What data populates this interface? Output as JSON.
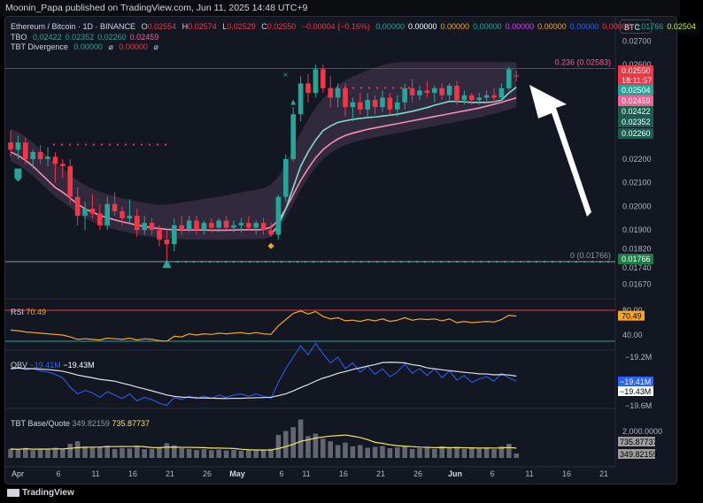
{
  "header": {
    "publisher_text": "Moonin_Papa published on TradingView.com, Jun 11, 2025 14:48 UTC+9"
  },
  "symbol": {
    "title": "Ethereum / Bitcoin · 1D · BINANCE",
    "ohlc": {
      "o_label": "O",
      "o": "0.02554",
      "h_label": "H",
      "h": "0.02574",
      "l_label": "L",
      "l": "0.02529",
      "c_label": "C",
      "c": "0.02550",
      "change": "−0.00004 (−0.16%)"
    },
    "extra_values": [
      "0.00000",
      "0.00000",
      "0.00000",
      "0.00000",
      "0.00000",
      "0.00000",
      "0.00000",
      "0.00000",
      "0.01766",
      "0.02504"
    ],
    "extra_colors": [
      "#26a69a",
      "#ffffff",
      "#f5a623",
      "#26a69a",
      "#e040fb",
      "#f5a623",
      "#2962ff",
      "#f23645",
      "#26a69a",
      "#c6ff00"
    ],
    "currency_badge": "BTC"
  },
  "tbo_legend": {
    "label": "TBO",
    "values": [
      "0.02422",
      "0.02352",
      "0.02260",
      "0.02459"
    ],
    "colors": [
      "#26a69a",
      "#26a69a",
      "#26a69a",
      "#f06292"
    ]
  },
  "divergence_legend": {
    "label": "TBT Divergence",
    "v1": "0.00000",
    "sym1": "⌀",
    "v2": "0.00000",
    "sym2": "⌀"
  },
  "fib_labels": {
    "top": "0.236 (0.02583)",
    "bottom": "0 (0.01766)"
  },
  "price_axis": {
    "ticks": [
      "0.02700",
      "0.02600",
      "0.02200",
      "0.02100",
      "0.02000",
      "0.01900",
      "0.01820",
      "0.01740",
      "0.01670"
    ],
    "badges": [
      {
        "label": "0.02550",
        "sub": "18:11:57",
        "color": "#f23645"
      },
      {
        "label": "0.02504",
        "color": "#26a69a"
      },
      {
        "label": "0.02459",
        "color": "#f06292"
      },
      {
        "label": "0.02422",
        "color": "#1b5e50"
      },
      {
        "label": "0.02352",
        "color": "#1b5e50"
      },
      {
        "label": "0.02260",
        "color": "#1b5e50"
      },
      {
        "label": "0.01766",
        "color": "#1b7f45"
      }
    ]
  },
  "rsi": {
    "label": "RSI",
    "value": "70.49",
    "ticks": [
      "80.00",
      "40.00"
    ],
    "badge": "70.49"
  },
  "obv": {
    "label": "OBV",
    "v1": "−19.41M",
    "v2": "−19.43M",
    "ticks": [
      "−19.2M",
      "−19.6M"
    ],
    "badge1": "−19.41M",
    "badge2": "−19.43M"
  },
  "volume": {
    "label": "TBT Base/Quote",
    "v1": "349.82159",
    "v2": "735.87737",
    "ticks": [
      "2,000.0000"
    ],
    "badge1": "735.87737",
    "badge2": "349.82159"
  },
  "time_axis": [
    "Apr",
    "6",
    "11",
    "16",
    "21",
    "26",
    "May",
    "6",
    "11",
    "16",
    "21",
    "26",
    "Jun",
    "6",
    "11",
    "16",
    "21"
  ],
  "branding": "TradingView",
  "chart_data": {
    "type": "candlestick",
    "title": "Ethereum / Bitcoin · 1D · BINANCE",
    "x_start": "2025-03-25",
    "x_end": "2025-06-11",
    "ohlc": [
      [
        0.0227,
        0.0232,
        0.0221,
        0.0224
      ],
      [
        0.0224,
        0.023,
        0.022,
        0.0227
      ],
      [
        0.0227,
        0.0229,
        0.0218,
        0.022
      ],
      [
        0.022,
        0.0224,
        0.0216,
        0.0223
      ],
      [
        0.0223,
        0.0226,
        0.0218,
        0.022
      ],
      [
        0.022,
        0.0225,
        0.0217,
        0.0221
      ],
      [
        0.0221,
        0.0223,
        0.021,
        0.0218
      ],
      [
        0.0218,
        0.022,
        0.0212,
        0.0217
      ],
      [
        0.0217,
        0.022,
        0.0201,
        0.0204
      ],
      [
        0.0204,
        0.0208,
        0.0192,
        0.0196
      ],
      [
        0.0196,
        0.0202,
        0.019,
        0.0199
      ],
      [
        0.0199,
        0.0205,
        0.0195,
        0.0197
      ],
      [
        0.0197,
        0.0201,
        0.019,
        0.0192
      ],
      [
        0.0192,
        0.0204,
        0.019,
        0.0201
      ],
      [
        0.0201,
        0.0206,
        0.0196,
        0.0198
      ],
      [
        0.0198,
        0.02,
        0.0192,
        0.0195
      ],
      [
        0.0195,
        0.0203,
        0.0193,
        0.0196
      ],
      [
        0.0196,
        0.0199,
        0.0187,
        0.019
      ],
      [
        0.019,
        0.0196,
        0.0188,
        0.0193
      ],
      [
        0.0193,
        0.0195,
        0.0188,
        0.019
      ],
      [
        0.019,
        0.0192,
        0.0183,
        0.0186
      ],
      [
        0.0186,
        0.019,
        0.0177,
        0.0184
      ],
      [
        0.0184,
        0.0195,
        0.0181,
        0.0192
      ],
      [
        0.0192,
        0.0196,
        0.0188,
        0.019
      ],
      [
        0.019,
        0.0196,
        0.0189,
        0.0194
      ],
      [
        0.0194,
        0.0196,
        0.0188,
        0.019
      ],
      [
        0.019,
        0.0194,
        0.0188,
        0.0193
      ],
      [
        0.0193,
        0.0195,
        0.0189,
        0.0191
      ],
      [
        0.0191,
        0.0195,
        0.0189,
        0.0194
      ],
      [
        0.0194,
        0.0196,
        0.019,
        0.0191
      ],
      [
        0.0191,
        0.0194,
        0.0189,
        0.0192
      ],
      [
        0.0192,
        0.0195,
        0.0189,
        0.0193
      ],
      [
        0.0193,
        0.0196,
        0.019,
        0.0191
      ],
      [
        0.0191,
        0.0194,
        0.0188,
        0.0193
      ],
      [
        0.0193,
        0.0195,
        0.0188,
        0.019
      ],
      [
        0.019,
        0.0193,
        0.0187,
        0.0188
      ],
      [
        0.0188,
        0.0205,
        0.0186,
        0.0204
      ],
      [
        0.0204,
        0.0222,
        0.0202,
        0.022
      ],
      [
        0.022,
        0.0242,
        0.0219,
        0.0239
      ],
      [
        0.0239,
        0.0255,
        0.0236,
        0.0252
      ],
      [
        0.0252,
        0.0256,
        0.0244,
        0.0248
      ],
      [
        0.0248,
        0.026,
        0.0246,
        0.0258
      ],
      [
        0.0258,
        0.026,
        0.0248,
        0.025
      ],
      [
        0.025,
        0.0255,
        0.0242,
        0.0246
      ],
      [
        0.0246,
        0.0252,
        0.0242,
        0.025
      ],
      [
        0.025,
        0.0252,
        0.0238,
        0.0242
      ],
      [
        0.0242,
        0.0246,
        0.0236,
        0.0244
      ],
      [
        0.0244,
        0.0248,
        0.0239,
        0.0241
      ],
      [
        0.0241,
        0.0248,
        0.0238,
        0.0245
      ],
      [
        0.0245,
        0.0247,
        0.0239,
        0.0242
      ],
      [
        0.0242,
        0.0249,
        0.024,
        0.0246
      ],
      [
        0.0246,
        0.0248,
        0.0239,
        0.0241
      ],
      [
        0.0241,
        0.0247,
        0.0238,
        0.0244
      ],
      [
        0.0244,
        0.0252,
        0.0241,
        0.025
      ],
      [
        0.025,
        0.0254,
        0.0244,
        0.0247
      ],
      [
        0.0247,
        0.0251,
        0.0245,
        0.0249
      ],
      [
        0.0249,
        0.0253,
        0.0246,
        0.0248
      ],
      [
        0.0248,
        0.0251,
        0.0244,
        0.025
      ],
      [
        0.025,
        0.0252,
        0.0245,
        0.0247
      ],
      [
        0.0247,
        0.0252,
        0.0245,
        0.0251
      ],
      [
        0.0251,
        0.0253,
        0.0243,
        0.0245
      ],
      [
        0.0245,
        0.0249,
        0.0243,
        0.0247
      ],
      [
        0.0247,
        0.0248,
        0.0243,
        0.0245
      ],
      [
        0.0245,
        0.0248,
        0.0243,
        0.0246
      ],
      [
        0.0246,
        0.0249,
        0.0244,
        0.0247
      ],
      [
        0.0247,
        0.025,
        0.0244,
        0.0246
      ],
      [
        0.0246,
        0.0252,
        0.0245,
        0.025
      ],
      [
        0.025,
        0.0259,
        0.0249,
        0.0258
      ],
      [
        0.02554,
        0.02574,
        0.02529,
        0.0255
      ]
    ],
    "ema_slow": [
      0.0223,
      0.02215,
      0.02195,
      0.0217,
      0.0214,
      0.0211,
      0.0208,
      0.0206,
      0.02035,
      0.0201,
      0.0199,
      0.01975,
      0.01962,
      0.01952,
      0.01943,
      0.01935,
      0.01928,
      0.01921,
      0.01915,
      0.0191,
      0.01906,
      0.01903,
      0.01901,
      0.019,
      0.019,
      0.019,
      0.019,
      0.01899,
      0.01899,
      0.01899,
      0.019,
      0.01901,
      0.01901,
      0.01901,
      0.01902,
      0.01912,
      0.0194,
      0.0199,
      0.0205,
      0.0211,
      0.0216,
      0.02205,
      0.0224,
      0.02265,
      0.02285,
      0.023,
      0.0231,
      0.02318,
      0.02326,
      0.02332,
      0.02338,
      0.02344,
      0.0235,
      0.02356,
      0.02362,
      0.02368,
      0.02374,
      0.0238,
      0.02386,
      0.02392,
      0.02398,
      0.02404,
      0.0241,
      0.02416,
      0.02424,
      0.02432,
      0.0244,
      0.0245,
      0.02459
    ],
    "ema_fast": [
      null,
      null,
      null,
      null,
      null,
      null,
      null,
      null,
      null,
      null,
      null,
      null,
      null,
      null,
      null,
      null,
      null,
      null,
      null,
      null,
      null,
      null,
      null,
      null,
      null,
      null,
      null,
      null,
      null,
      null,
      null,
      null,
      null,
      null,
      null,
      0.0188,
      0.0192,
      0.0199,
      0.0208,
      0.0217,
      0.0223,
      0.0228,
      0.0232,
      0.0234,
      0.02355,
      0.02362,
      0.02368,
      0.02372,
      0.02376,
      0.02378,
      0.02382,
      0.02386,
      0.0239,
      0.02396,
      0.02402,
      0.0241,
      0.02418,
      0.02428,
      0.02436,
      0.02444,
      0.02444,
      0.02442,
      0.0244,
      0.0244,
      0.0244,
      0.02442,
      0.0245,
      0.0248,
      0.02504
    ],
    "rsi": [
      48,
      47,
      45,
      44,
      43,
      42,
      41,
      40,
      37,
      33,
      34,
      33,
      32,
      35,
      34,
      33,
      35,
      32,
      34,
      33,
      31,
      30,
      38,
      37,
      42,
      40,
      42,
      41,
      43,
      42,
      43,
      44,
      42,
      44,
      42,
      41,
      55,
      65,
      75,
      79,
      74,
      78,
      70,
      66,
      68,
      63,
      64,
      62,
      65,
      63,
      66,
      62,
      64,
      68,
      64,
      66,
      65,
      66,
      63,
      66,
      60,
      62,
      60,
      61,
      62,
      61,
      65,
      72,
      70.49
    ],
    "obv": [
      -19.3,
      -19.29,
      -19.31,
      -19.3,
      -19.32,
      -19.33,
      -19.35,
      -19.38,
      -19.46,
      -19.52,
      -19.49,
      -19.51,
      -19.55,
      -19.5,
      -19.53,
      -19.56,
      -19.52,
      -19.58,
      -19.55,
      -19.57,
      -19.6,
      -19.62,
      -19.55,
      -19.57,
      -19.54,
      -19.56,
      -19.54,
      -19.56,
      -19.53,
      -19.55,
      -19.53,
      -19.52,
      -19.54,
      -19.52,
      -19.54,
      -19.56,
      -19.42,
      -19.3,
      -19.2,
      -19.1,
      -19.18,
      -19.08,
      -19.17,
      -19.25,
      -19.2,
      -19.3,
      -19.25,
      -19.33,
      -19.28,
      -19.35,
      -19.3,
      -19.37,
      -19.33,
      -19.26,
      -19.34,
      -19.3,
      -19.36,
      -19.3,
      -19.38,
      -19.32,
      -19.4,
      -19.36,
      -19.42,
      -19.39,
      -19.37,
      -19.41,
      -19.34,
      -19.38,
      -19.41
    ],
    "volume": [
      700,
      650,
      780,
      600,
      720,
      680,
      800,
      690,
      1100,
      1300,
      900,
      820,
      880,
      960,
      700,
      760,
      740,
      950,
      680,
      700,
      820,
      1150,
      980,
      760,
      700,
      620,
      680,
      600,
      650,
      580,
      620,
      560,
      600,
      580,
      640,
      700,
      1800,
      2100,
      2400,
      3000,
      1700,
      1900,
      1500,
      1300,
      1000,
      1200,
      900,
      1000,
      800,
      860,
      920,
      760,
      820,
      880,
      700,
      760,
      820,
      700,
      900,
      760,
      880,
      700,
      760,
      720,
      780,
      680,
      900,
      1100,
      349.82
    ]
  }
}
